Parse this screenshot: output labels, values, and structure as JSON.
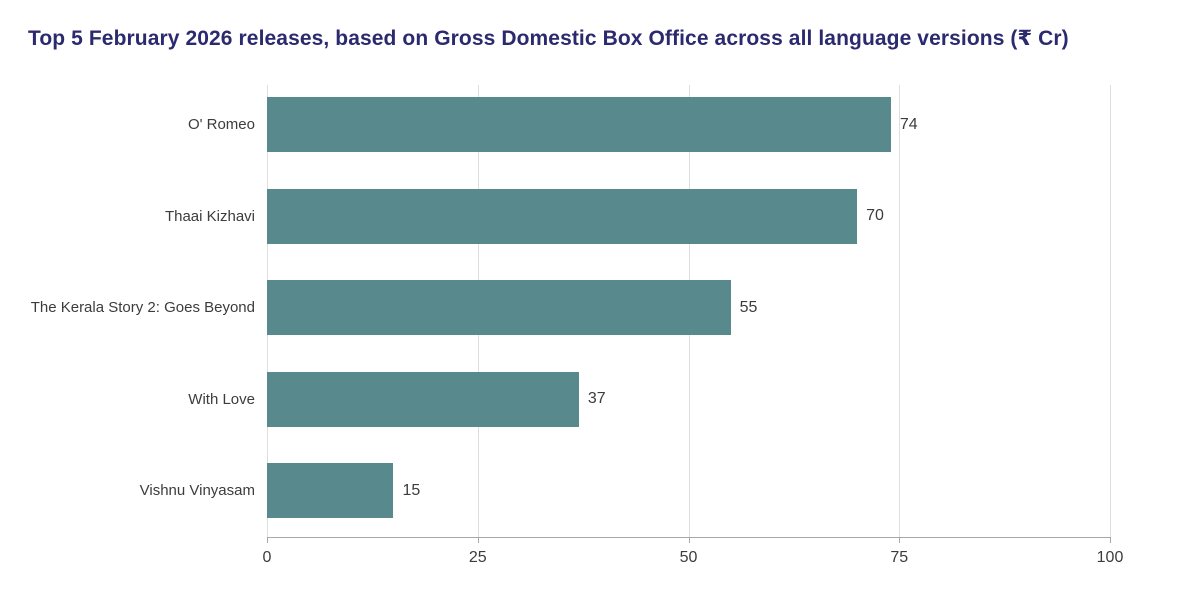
{
  "title": "Top 5 February 2026 releases, based on Gross Domestic Box Office across all language versions (₹ Cr)",
  "colors": {
    "title": "#2B2A6F",
    "bar": "#57898D",
    "gridline": "#DEDEDE",
    "axis": "#A8A8A8",
    "text": "#3C3C3C"
  },
  "chart_data": {
    "type": "bar",
    "orientation": "horizontal",
    "title": "Top 5 February 2026 releases, based on Gross Domestic Box Office across all language versions (₹ Cr)",
    "categories": [
      "O' Romeo",
      "Thaai Kizhavi",
      "The Kerala Story 2: Goes Beyond",
      "With Love",
      "Vishnu Vinyasam"
    ],
    "values": [
      74,
      70,
      55,
      37,
      15
    ],
    "data_labels": [
      "74",
      "70",
      "55",
      "37",
      "15"
    ],
    "xlabel": "",
    "ylabel": "",
    "xlim": [
      0,
      100
    ],
    "xticks": [
      0,
      25,
      50,
      75,
      100
    ],
    "grid": true,
    "legend": false
  }
}
